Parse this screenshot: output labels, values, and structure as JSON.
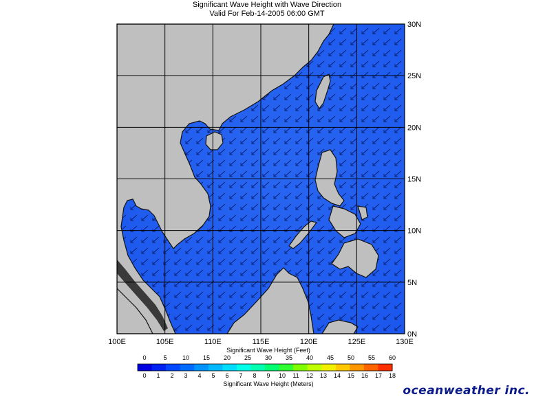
{
  "header": {
    "title": "Significant Wave Height with Wave Direction",
    "subtitle": "Valid For Feb-14-2005 06:00 GMT"
  },
  "map": {
    "lon_labels": [
      "100E",
      "105E",
      "110E",
      "115E",
      "120E",
      "125E",
      "130E"
    ],
    "lat_labels": [
      "30N",
      "25N",
      "20N",
      "15N",
      "10N",
      "5N",
      "0N"
    ],
    "colors": {
      "land": "#bfbfbf",
      "sea": "#1f5cf0",
      "sea_light": "#3f78f2",
      "grid": "#000000",
      "arrow": "#0a1d6e"
    },
    "wave_direction": "toward southwest"
  },
  "legend": {
    "feet_label": "Significant Wave Height (Feet)",
    "meters_label": "Significant Wave Height (Meters)",
    "feet_ticks": [
      "0",
      "5",
      "10",
      "15",
      "20",
      "25",
      "30",
      "35",
      "40",
      "45",
      "50",
      "55",
      "60"
    ],
    "meter_ticks": [
      "0",
      "1",
      "2",
      "3",
      "4",
      "5",
      "6",
      "7",
      "8",
      "9",
      "10",
      "11",
      "12",
      "13",
      "14",
      "15",
      "16",
      "17",
      "18"
    ],
    "colors": [
      "#0000e0",
      "#0022f0",
      "#0048ff",
      "#006cff",
      "#0092ff",
      "#00b8ff",
      "#00dcff",
      "#00ffe8",
      "#00ffb0",
      "#00ff70",
      "#30ff30",
      "#80ff00",
      "#c0ff00",
      "#f0f000",
      "#ffc800",
      "#ff9600",
      "#ff6400",
      "#ff3000"
    ]
  },
  "brand": "oceanweather inc."
}
